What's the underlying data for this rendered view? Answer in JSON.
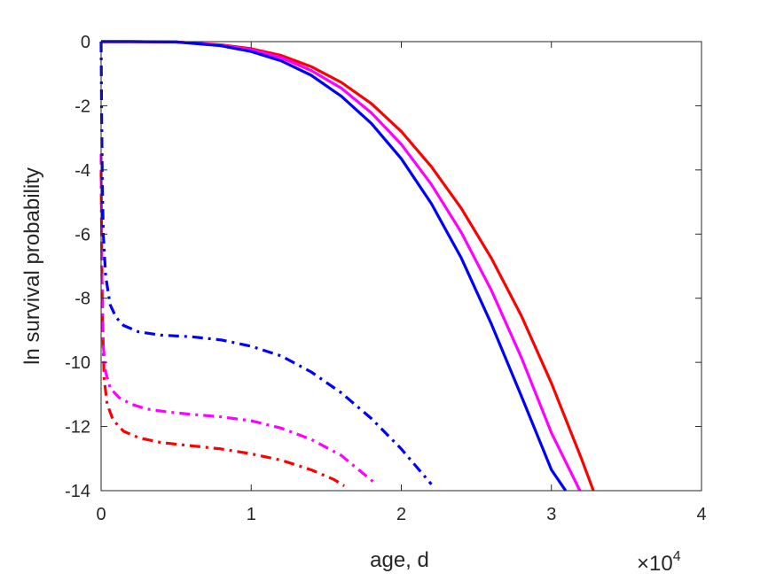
{
  "chart_data": {
    "type": "line",
    "xlabel": "age, d",
    "ylabel": "ln survival probability",
    "x_exponent": {
      "base": "×10",
      "power": "4"
    },
    "xlim": [
      0,
      40000
    ],
    "ylim": [
      -14,
      0
    ],
    "xticks": [
      0,
      10000,
      20000,
      30000,
      40000
    ],
    "xtick_labels": [
      "0",
      "1",
      "2",
      "3",
      "4"
    ],
    "yticks": [
      0,
      -2,
      -4,
      -6,
      -8,
      -10,
      -12,
      -14
    ],
    "ytick_labels": [
      "0",
      "-2",
      "-4",
      "-6",
      "-8",
      "-10",
      "-12",
      "-14"
    ],
    "grid": false,
    "series": [
      {
        "color": "#ff0000",
        "style": "solid",
        "x": [
          0,
          2000,
          5000,
          8000,
          10000,
          12000,
          14000,
          16000,
          18000,
          20000,
          22000,
          24000,
          26000,
          28000,
          30000,
          32000,
          32800
        ],
        "y": [
          0,
          0,
          -0.01,
          -0.1,
          -0.22,
          -0.43,
          -0.78,
          -1.27,
          -1.93,
          -2.8,
          -3.9,
          -5.2,
          -6.75,
          -8.55,
          -10.65,
          -13.0,
          -14.0
        ]
      },
      {
        "color": "#ff00ff",
        "style": "solid",
        "x": [
          0,
          2000,
          5000,
          8000,
          10000,
          12000,
          14000,
          16000,
          18000,
          20000,
          22000,
          24000,
          26000,
          28000,
          30000,
          31900
        ],
        "y": [
          0,
          0,
          -0.01,
          -0.11,
          -0.25,
          -0.5,
          -0.9,
          -1.45,
          -2.22,
          -3.2,
          -4.45,
          -5.95,
          -7.75,
          -9.85,
          -12.2,
          -14.0
        ]
      },
      {
        "color": "#0000ff",
        "style": "solid",
        "x": [
          0,
          2000,
          5000,
          8000,
          10000,
          12000,
          14000,
          16000,
          18000,
          20000,
          22000,
          24000,
          26000,
          28000,
          30000,
          30950
        ],
        "y": [
          0,
          0,
          -0.01,
          -0.13,
          -0.31,
          -0.6,
          -1.05,
          -1.7,
          -2.55,
          -3.65,
          -5.05,
          -6.75,
          -8.8,
          -11.05,
          -13.35,
          -14.0
        ]
      },
      {
        "color": "#ff0000",
        "style": "dashdot",
        "x": [
          0,
          80,
          200,
          400,
          800,
          1500,
          2500,
          4000,
          6000,
          8000,
          10000,
          12000,
          14000,
          15500,
          16200
        ],
        "y": [
          -4,
          -8.5,
          -10.5,
          -11.3,
          -11.8,
          -12.15,
          -12.35,
          -12.5,
          -12.6,
          -12.7,
          -12.85,
          -13.05,
          -13.35,
          -13.65,
          -13.85
        ]
      },
      {
        "color": "#ff00ff",
        "style": "dashdot",
        "x": [
          0,
          60,
          150,
          300,
          600,
          1200,
          2000,
          3000,
          4500,
          6000,
          8000,
          10000,
          12000,
          14000,
          16000,
          18200
        ],
        "y": [
          -3.5,
          -7.5,
          -9.5,
          -10.3,
          -10.8,
          -11.1,
          -11.3,
          -11.45,
          -11.55,
          -11.62,
          -11.7,
          -11.82,
          -12.05,
          -12.4,
          -12.9,
          -13.75
        ]
      },
      {
        "color": "#0000ff",
        "style": "dashdot",
        "x": [
          0,
          30,
          80,
          150,
          300,
          600,
          1000,
          1500,
          2500,
          4000,
          6000,
          8000,
          10000,
          12000,
          14000,
          16000,
          18000,
          20000,
          22000
        ],
        "y": [
          0,
          -2,
          -4.5,
          -6,
          -7.3,
          -8.2,
          -8.6,
          -8.85,
          -9.05,
          -9.15,
          -9.2,
          -9.3,
          -9.5,
          -9.8,
          -10.3,
          -10.95,
          -11.75,
          -12.7,
          -13.8
        ]
      }
    ]
  }
}
